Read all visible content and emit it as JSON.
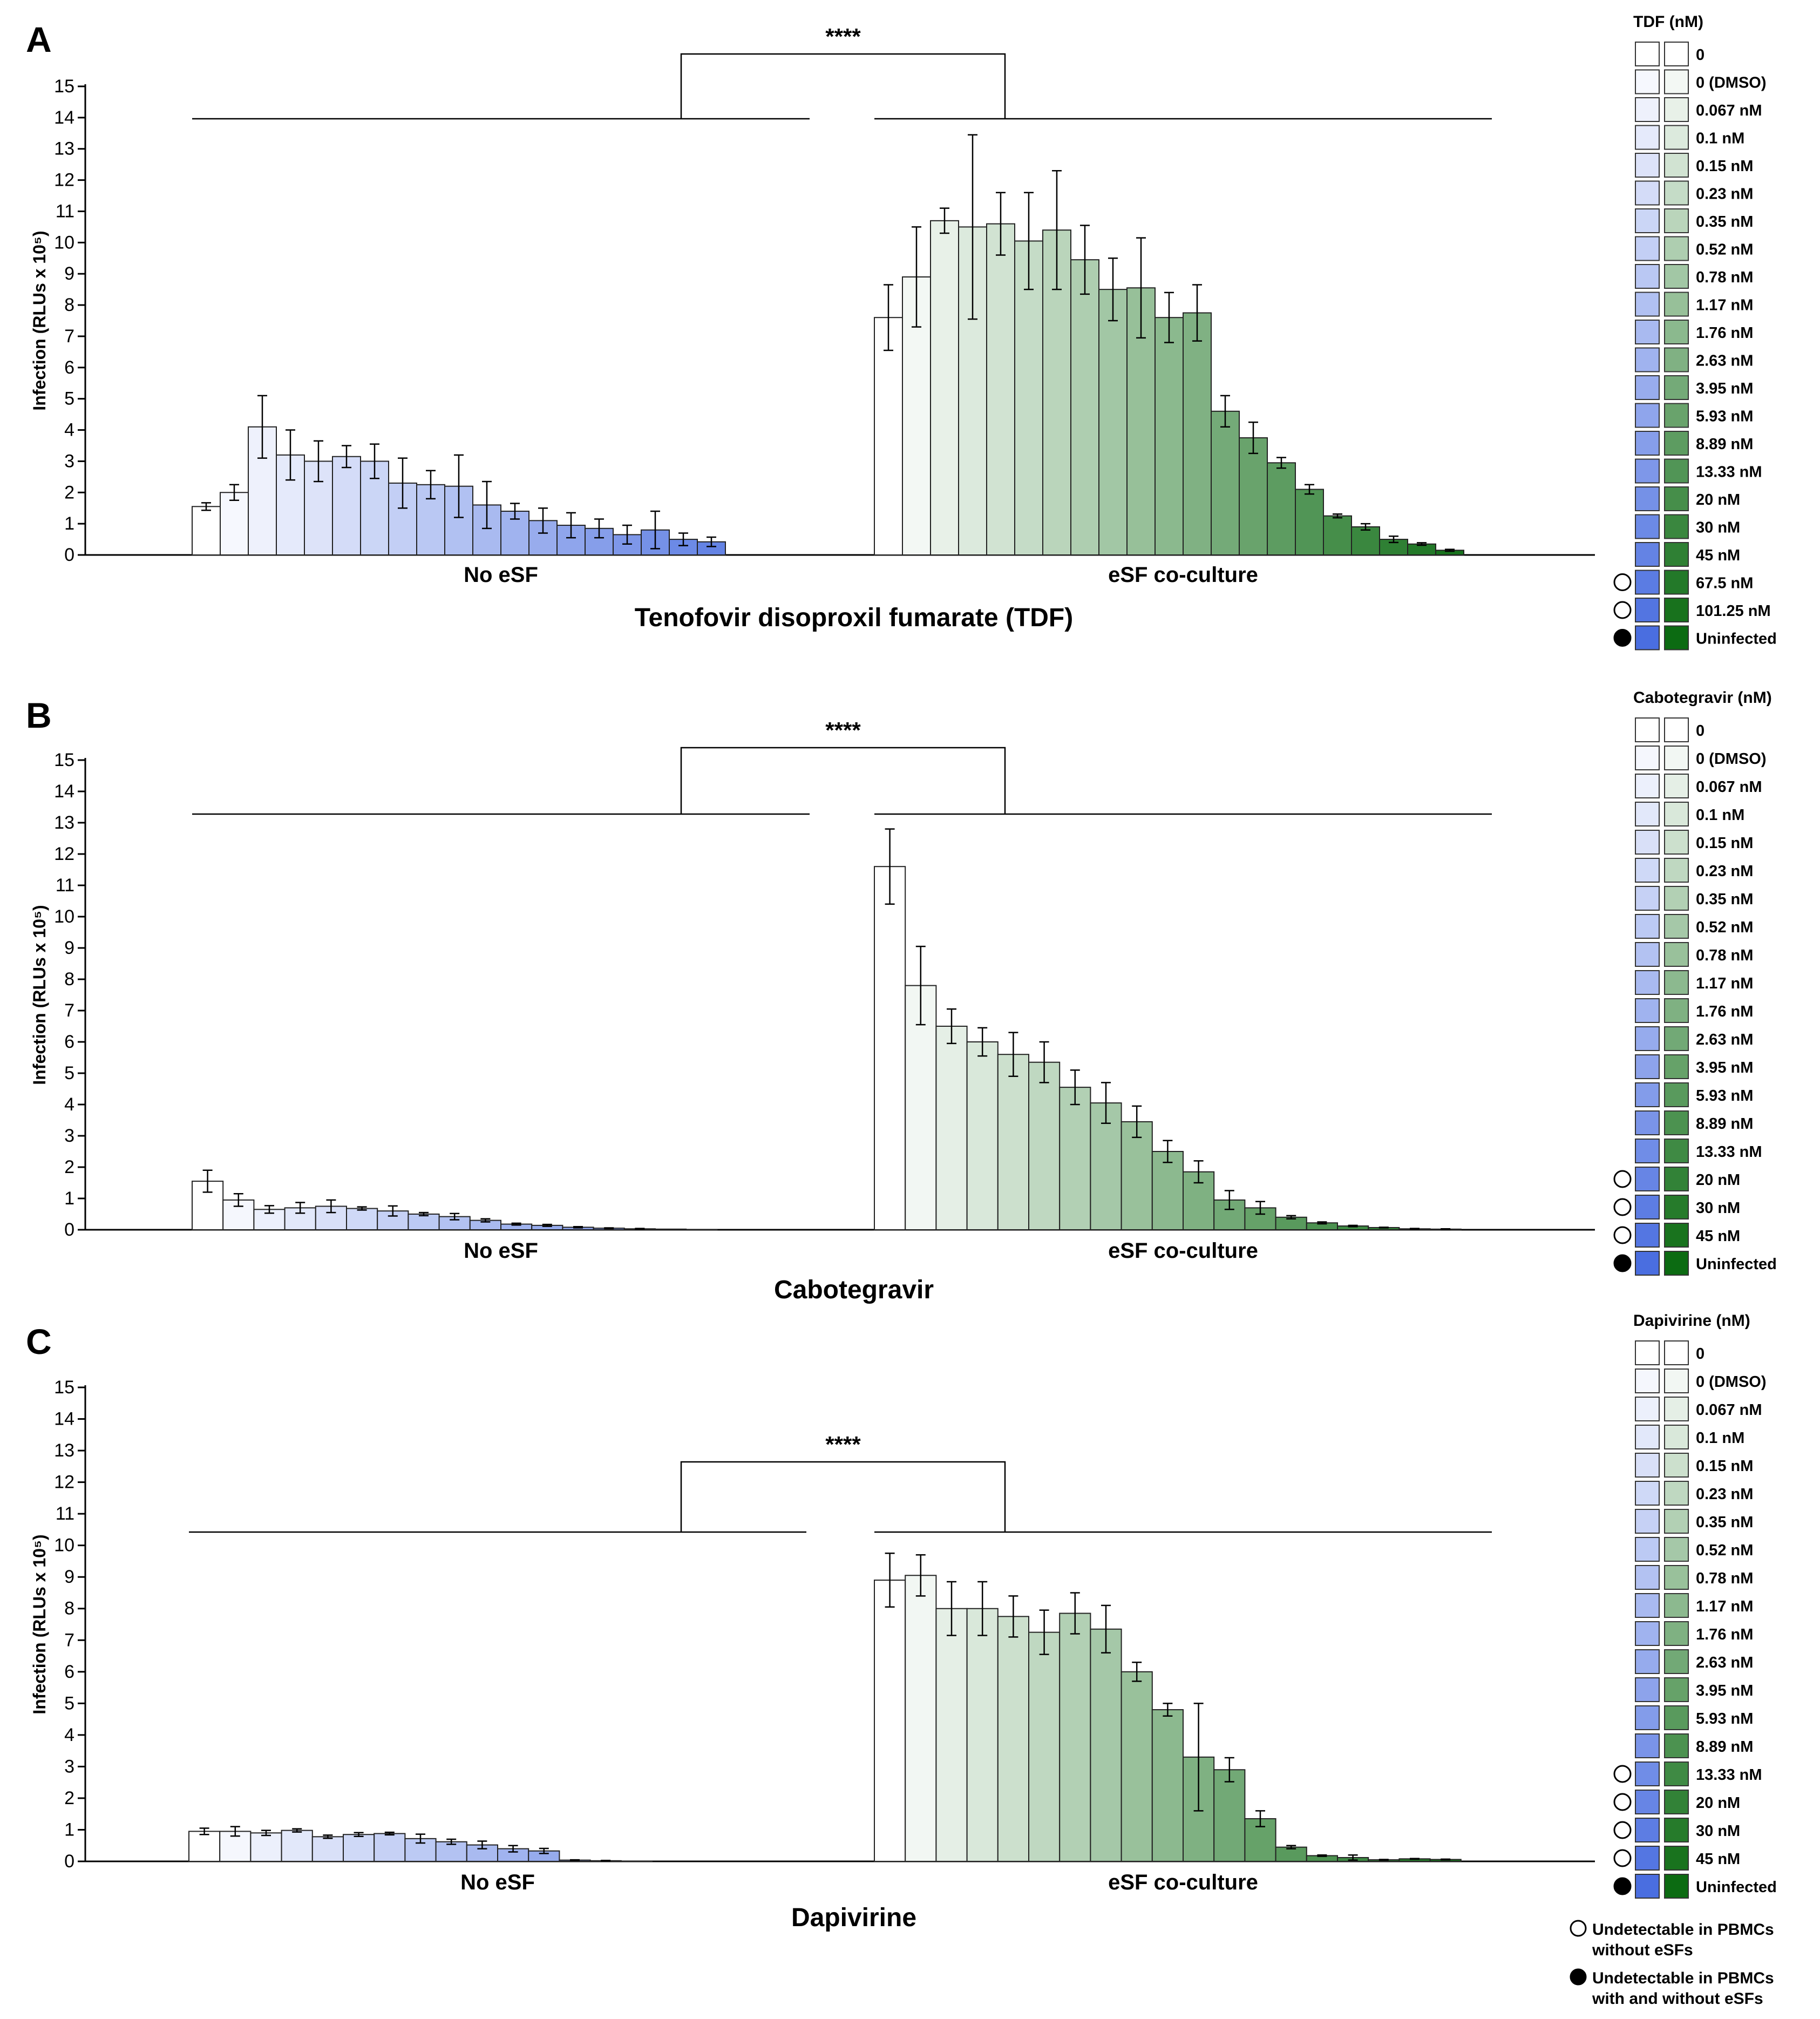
{
  "footnotes": {
    "open": [
      "Undetectable in PBMCs",
      "without eSFs"
    ],
    "filled": [
      "Undetectable in PBMCs",
      "with and without eSFs"
    ]
  },
  "colors": {
    "blue_start": "#ffffff",
    "blue_end": "#4a6ee0",
    "green_start": "#ffffff",
    "green_end": "#0c6b12",
    "line": "#222222"
  },
  "chart_data": [
    {
      "type": "bar",
      "panel_label": "A",
      "title": "Tenofovir disoproxil fumarate (TDF)",
      "ylabel": "Infection (RLUs x 10⁵)",
      "ylim": [
        0,
        15
      ],
      "yticks": [
        0,
        1,
        2,
        3,
        4,
        5,
        6,
        7,
        8,
        9,
        10,
        11,
        12,
        13,
        14,
        15
      ],
      "groups": [
        "No eSF",
        "eSF co-culture"
      ],
      "significance": "****",
      "legend_title": "TDF (nM)",
      "categories": [
        "0",
        "0 (DMSO)",
        "0.067 nM",
        "0.1 nM",
        "0.15 nM",
        "0.23 nM",
        "0.35 nM",
        "0.52 nM",
        "0.78 nM",
        "1.17 nM",
        "1.76 nM",
        "2.63 nM",
        "3.95 nM",
        "5.93 nM",
        "8.89 nM",
        "13.33 nM",
        "20 nM",
        "30 nM",
        "45 nM",
        "67.5 nM",
        "101.25 nM",
        "Uninfected"
      ],
      "markers": [
        "",
        "",
        "",
        "",
        "",
        "",
        "",
        "",
        "",
        "",
        "",
        "",
        "",
        "",
        "",
        "",
        "",
        "",
        "",
        "open",
        "open",
        "filled"
      ],
      "series": [
        {
          "name": "No eSF",
          "values": [
            1.55,
            2.0,
            4.1,
            3.2,
            3.0,
            3.15,
            3.0,
            2.3,
            2.25,
            2.2,
            1.6,
            1.4,
            1.1,
            0.95,
            0.85,
            0.65,
            0.8,
            0.5,
            0.42,
            0.0,
            0.0,
            0.0
          ],
          "errors": [
            0.12,
            0.25,
            1.0,
            0.8,
            0.65,
            0.35,
            0.55,
            0.8,
            0.45,
            1.0,
            0.75,
            0.25,
            0.4,
            0.4,
            0.3,
            0.3,
            0.6,
            0.2,
            0.15,
            0,
            0,
            0
          ]
        },
        {
          "name": "eSF co-culture",
          "values": [
            7.6,
            8.9,
            10.7,
            10.5,
            10.6,
            10.05,
            10.4,
            9.45,
            8.5,
            8.55,
            7.6,
            7.75,
            4.6,
            3.75,
            2.95,
            2.1,
            1.25,
            0.9,
            0.5,
            0.35,
            0.15,
            0.0
          ],
          "errors": [
            1.05,
            1.6,
            0.4,
            2.95,
            1.0,
            1.55,
            1.9,
            1.1,
            1.0,
            1.6,
            0.8,
            0.9,
            0.5,
            0.5,
            0.17,
            0.15,
            0.06,
            0.1,
            0.1,
            0.04,
            0.03,
            0
          ]
        }
      ]
    },
    {
      "type": "bar",
      "panel_label": "B",
      "title": "Cabotegravir",
      "ylabel": "Infection (RLUs x 10⁵)",
      "ylim": [
        0,
        15
      ],
      "yticks": [
        0,
        1,
        2,
        3,
        4,
        5,
        6,
        7,
        8,
        9,
        10,
        11,
        12,
        13,
        14,
        15
      ],
      "groups": [
        "No eSF",
        "eSF co-culture"
      ],
      "significance": "****",
      "legend_title": "Cabotegravir (nM)",
      "categories": [
        "0",
        "0 (DMSO)",
        "0.067 nM",
        "0.1 nM",
        "0.15 nM",
        "0.23 nM",
        "0.35 nM",
        "0.52 nM",
        "0.78 nM",
        "1.17 nM",
        "1.76 nM",
        "2.63 nM",
        "3.95 nM",
        "5.93 nM",
        "8.89 nM",
        "13.33 nM",
        "20 nM",
        "30 nM",
        "45 nM",
        "Uninfected"
      ],
      "markers": [
        "",
        "",
        "",
        "",
        "",
        "",
        "",
        "",
        "",
        "",
        "",
        "",
        "",
        "",
        "",
        "",
        "open",
        "open",
        "open",
        "filled"
      ],
      "series": [
        {
          "name": "No eSF",
          "values": [
            1.55,
            0.95,
            0.65,
            0.7,
            0.75,
            0.68,
            0.6,
            0.5,
            0.42,
            0.3,
            0.18,
            0.14,
            0.08,
            0.05,
            0.03,
            0.02,
            0.01,
            0.0,
            0.0,
            0.0
          ],
          "errors": [
            0.35,
            0.2,
            0.12,
            0.17,
            0.2,
            0.05,
            0.16,
            0.05,
            0.1,
            0.05,
            0.03,
            0.03,
            0.02,
            0.01,
            0.01,
            0,
            0,
            0,
            0,
            0
          ]
        },
        {
          "name": "eSF co-culture",
          "values": [
            11.6,
            7.8,
            6.5,
            6.0,
            5.6,
            5.35,
            4.55,
            4.05,
            3.45,
            2.5,
            1.85,
            0.95,
            0.7,
            0.4,
            0.22,
            0.12,
            0.07,
            0.03,
            0.02,
            0.0
          ],
          "errors": [
            1.2,
            1.25,
            0.55,
            0.45,
            0.7,
            0.65,
            0.55,
            0.65,
            0.5,
            0.35,
            0.35,
            0.3,
            0.2,
            0.05,
            0.03,
            0.02,
            0.01,
            0.01,
            0.01,
            0
          ]
        }
      ]
    },
    {
      "type": "bar",
      "panel_label": "C",
      "title": "Dapivirine",
      "ylabel": "Infection (RLUs x 10⁵)",
      "ylim": [
        0,
        15
      ],
      "yticks": [
        0,
        1,
        2,
        3,
        4,
        5,
        6,
        7,
        8,
        9,
        10,
        11,
        12,
        13,
        14,
        15
      ],
      "groups": [
        "No eSF",
        "eSF co-culture"
      ],
      "significance": "****",
      "legend_title": "Dapivirine (nM)",
      "categories": [
        "0",
        "0 (DMSO)",
        "0.067 nM",
        "0.1 nM",
        "0.15 nM",
        "0.23 nM",
        "0.35 nM",
        "0.52 nM",
        "0.78 nM",
        "1.17 nM",
        "1.76 nM",
        "2.63 nM",
        "3.95 nM",
        "5.93 nM",
        "8.89 nM",
        "13.33 nM",
        "20 nM",
        "30 nM",
        "45 nM",
        "Uninfected"
      ],
      "markers": [
        "",
        "",
        "",
        "",
        "",
        "",
        "",
        "",
        "",
        "",
        "",
        "",
        "",
        "",
        "",
        "open",
        "open",
        "open",
        "open",
        "filled"
      ],
      "series": [
        {
          "name": "No eSF",
          "values": [
            0.95,
            0.95,
            0.9,
            0.98,
            0.78,
            0.85,
            0.88,
            0.72,
            0.62,
            0.52,
            0.4,
            0.33,
            0.04,
            0.02,
            0.01,
            0.0,
            0.0,
            0.0,
            0.0,
            0.0
          ],
          "errors": [
            0.1,
            0.15,
            0.08,
            0.05,
            0.05,
            0.06,
            0.04,
            0.14,
            0.08,
            0.12,
            0.1,
            0.08,
            0.01,
            0.01,
            0,
            0,
            0,
            0,
            0,
            0
          ]
        },
        {
          "name": "eSF co-culture",
          "values": [
            8.9,
            9.05,
            8.0,
            8.0,
            7.75,
            7.25,
            7.85,
            7.35,
            6.0,
            4.8,
            3.3,
            2.9,
            1.35,
            0.45,
            0.18,
            0.12,
            0.05,
            0.08,
            0.06,
            0.0
          ],
          "errors": [
            0.85,
            0.65,
            0.85,
            0.85,
            0.65,
            0.7,
            0.65,
            0.75,
            0.3,
            0.2,
            1.7,
            0.38,
            0.25,
            0.05,
            0.02,
            0.08,
            0.01,
            0.01,
            0.01,
            0
          ]
        }
      ]
    }
  ]
}
